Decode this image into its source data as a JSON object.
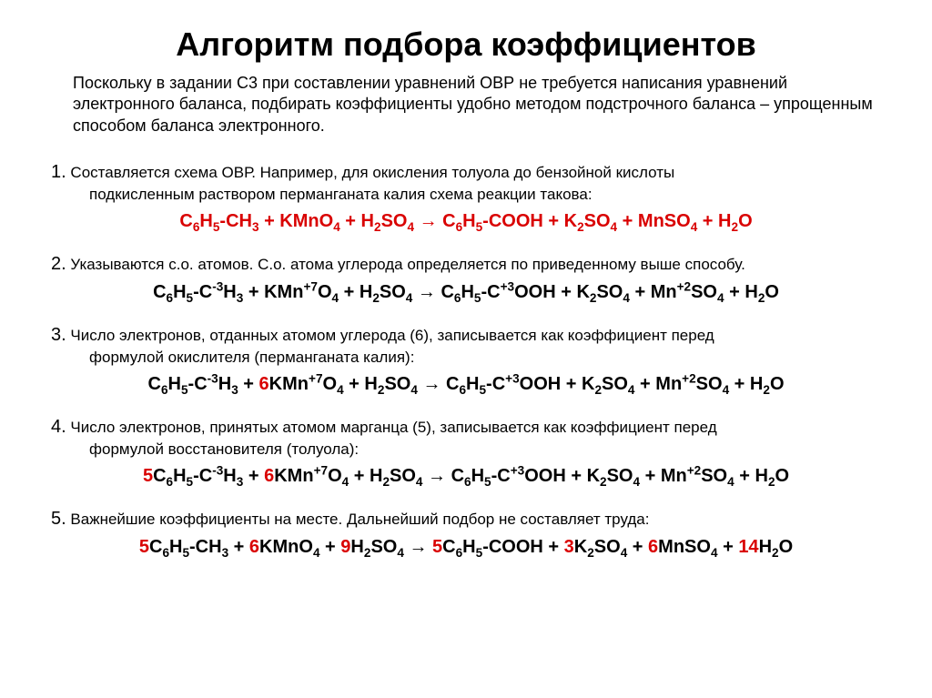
{
  "colors": {
    "text": "#000000",
    "highlight": "#d90000",
    "background": "#ffffff"
  },
  "typography": {
    "title_fontsize": 36,
    "body_fontsize": 17,
    "equation_fontsize": 20,
    "font_family": "Arial"
  },
  "title": "Алгоритм подбора коэффициентов",
  "intro": "Поскольку в задании С3 при составлении уравнений ОВР не требуется написания уравнений электронного баланса, подбирать коэффициенты удобно методом подстрочного баланса – упрощенным способом баланса электронного.",
  "steps": {
    "s1": {
      "num": "1.",
      "text_a": " Составляется схема ОВР. Например, для окисления толуола до бензойной кислоты",
      "text_b": "подкисленным раствором перманганата калия схема реакции такова:"
    },
    "s2": {
      "num": "2.",
      "text_a": " Указываются с.о. атомов. С.о. атома углерода определяется по приведенному выше способу."
    },
    "s3": {
      "num": "3.",
      "text_a": " Число электронов, отданных атомом углерода (6), записывается как коэффициент перед",
      "text_b": "формулой окислителя (перманганата калия):"
    },
    "s4": {
      "num": "4.",
      "text_a": " Число электронов, принятых атомом марганца (5), записывается как коэффициент перед",
      "text_b": "формулой восстановителя (толуола):"
    },
    "s5": {
      "num": "5.",
      "text_a": " Важнейшие коэффициенты на месте. Дальнейший подбор не составляет труда:"
    }
  },
  "equations": {
    "eq1": {
      "color": "#d90000",
      "parts": [
        {
          "t": "C",
          "sub": "6"
        },
        {
          "t": "H",
          "sub": "5"
        },
        {
          "t": "-CH",
          "sub": "3"
        },
        {
          "t": " + KMnO",
          "sub": "4"
        },
        {
          "t": " + H",
          "sub": "2"
        },
        {
          "t": "SO",
          "sub": "4"
        },
        {
          "t": " → C",
          "sub": "6"
        },
        {
          "t": "H",
          "sub": "5"
        },
        {
          "t": "-COOH + K",
          "sub": "2"
        },
        {
          "t": "SO",
          "sub": "4"
        },
        {
          "t": " + MnSO",
          "sub": "4"
        },
        {
          "t": " + H",
          "sub": "2"
        },
        {
          "t": "O"
        }
      ]
    },
    "eq2": {
      "parts": [
        {
          "t": "C",
          "sub": "6"
        },
        {
          "t": "H",
          "sub": "5"
        },
        {
          "t": "-C",
          "sup": "-3"
        },
        {
          "t": "H",
          "sub": "3"
        },
        {
          "t": " + KMn",
          "sup": "+7"
        },
        {
          "t": "O",
          "sub": "4"
        },
        {
          "t": " + H",
          "sub": "2"
        },
        {
          "t": "SO",
          "sub": "4"
        },
        {
          "t": " → C",
          "sub": "6"
        },
        {
          "t": "H",
          "sub": "5"
        },
        {
          "t": "-C",
          "sup": "+3"
        },
        {
          "t": "OOH + K",
          "sub": "2"
        },
        {
          "t": "SO",
          "sub": "4"
        },
        {
          "t": " + Mn",
          "sup": "+2"
        },
        {
          "t": "SO",
          "sub": "4"
        },
        {
          "t": " + H",
          "sub": "2"
        },
        {
          "t": "O"
        }
      ]
    },
    "eq3": {
      "parts": [
        {
          "t": "C",
          "sub": "6"
        },
        {
          "t": "H",
          "sub": "5"
        },
        {
          "t": "-C",
          "sup": "-3"
        },
        {
          "t": "H",
          "sub": "3"
        },
        {
          "t": " + "
        },
        {
          "t": "6",
          "color": "#d90000"
        },
        {
          "t": "KMn",
          "sup": "+7"
        },
        {
          "t": "O",
          "sub": "4"
        },
        {
          "t": " + H",
          "sub": "2"
        },
        {
          "t": "SO",
          "sub": "4"
        },
        {
          "t": " → C",
          "sub": "6"
        },
        {
          "t": "H",
          "sub": "5"
        },
        {
          "t": "-C",
          "sup": "+3"
        },
        {
          "t": "OOH + K",
          "sub": "2"
        },
        {
          "t": "SO",
          "sub": "4"
        },
        {
          "t": " + Mn",
          "sup": "+2"
        },
        {
          "t": "SO",
          "sub": "4"
        },
        {
          "t": " + H",
          "sub": "2"
        },
        {
          "t": "O"
        }
      ]
    },
    "eq4": {
      "parts": [
        {
          "t": "5",
          "color": "#d90000"
        },
        {
          "t": "C",
          "sub": "6"
        },
        {
          "t": "H",
          "sub": "5"
        },
        {
          "t": "-C",
          "sup": "-3"
        },
        {
          "t": "H",
          "sub": "3"
        },
        {
          "t": " + "
        },
        {
          "t": "6",
          "color": "#d90000"
        },
        {
          "t": "KMn",
          "sup": "+7"
        },
        {
          "t": "O",
          "sub": "4"
        },
        {
          "t": " + H",
          "sub": "2"
        },
        {
          "t": "SO",
          "sub": "4"
        },
        {
          "t": " → C",
          "sub": "6"
        },
        {
          "t": "H",
          "sub": "5"
        },
        {
          "t": "-C",
          "sup": "+3"
        },
        {
          "t": "OOH + K",
          "sub": "2"
        },
        {
          "t": "SO",
          "sub": "4"
        },
        {
          "t": " + Mn",
          "sup": "+2"
        },
        {
          "t": "SO",
          "sub": "4"
        },
        {
          "t": " + H",
          "sub": "2"
        },
        {
          "t": "O"
        }
      ]
    },
    "eq5": {
      "parts": [
        {
          "t": "5",
          "color": "#d90000"
        },
        {
          "t": "C",
          "sub": "6"
        },
        {
          "t": "H",
          "sub": "5"
        },
        {
          "t": "-CH",
          "sub": "3"
        },
        {
          "t": " + "
        },
        {
          "t": "6",
          "color": "#d90000"
        },
        {
          "t": "KMnO",
          "sub": "4"
        },
        {
          "t": " + "
        },
        {
          "t": "9",
          "color": "#d90000"
        },
        {
          "t": "H",
          "sub": "2"
        },
        {
          "t": "SO",
          "sub": "4"
        },
        {
          "t": " → "
        },
        {
          "t": "5",
          "color": "#d90000"
        },
        {
          "t": "C",
          "sub": "6"
        },
        {
          "t": "H",
          "sub": "5"
        },
        {
          "t": "-COOH + "
        },
        {
          "t": "3",
          "color": "#d90000"
        },
        {
          "t": "K",
          "sub": "2"
        },
        {
          "t": "SO",
          "sub": "4"
        },
        {
          "t": " + "
        },
        {
          "t": "6",
          "color": "#d90000"
        },
        {
          "t": "MnSO",
          "sub": "4"
        },
        {
          "t": " + "
        },
        {
          "t": "14",
          "color": "#d90000"
        },
        {
          "t": "H",
          "sub": "2"
        },
        {
          "t": "O"
        }
      ]
    }
  }
}
